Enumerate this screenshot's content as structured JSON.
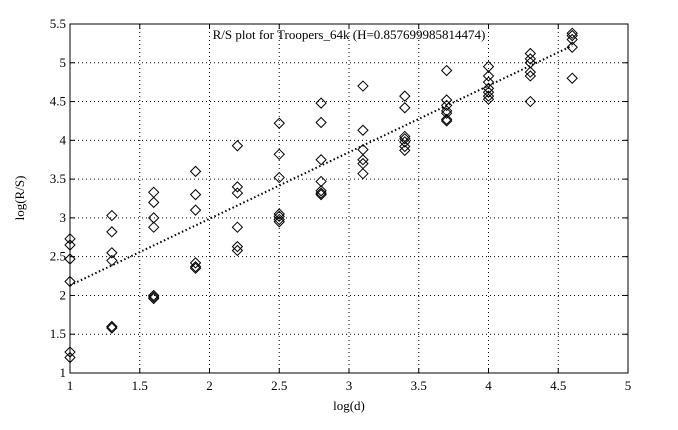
{
  "chart_data": {
    "type": "scatter",
    "title": "R/S plot for Troopers_64k (H=0.857699985814474)",
    "xlabel": "log(d)",
    "ylabel": "log(R/S)",
    "xlim": [
      1,
      5
    ],
    "ylim": [
      1,
      5.5
    ],
    "xticks": [
      "1",
      "1.5",
      "2",
      "2.5",
      "3",
      "3.5",
      "4",
      "4.5",
      "5"
    ],
    "yticks": [
      "1",
      "1.5",
      "2",
      "2.5",
      "3",
      "3.5",
      "4",
      "4.5",
      "5",
      "5.5"
    ],
    "grid": true,
    "marker": "diamond",
    "series": [
      {
        "x": [
          1,
          1,
          1,
          1,
          1,
          1,
          1.3,
          1.3,
          1.3,
          1.3,
          1.3,
          1.3,
          1.6,
          1.6,
          1.6,
          1.6,
          1.6,
          1.6,
          1.6,
          1.9,
          1.9,
          1.9,
          1.9,
          1.9,
          1.9,
          2.2,
          2.2,
          2.2,
          2.2,
          2.2,
          2.2,
          2.5,
          2.5,
          2.5,
          2.5,
          2.5,
          2.5,
          2.5,
          2.8,
          2.8,
          2.8,
          2.8,
          2.8,
          2.8,
          2.8,
          3.1,
          3.1,
          3.1,
          3.1,
          3.1,
          3.1,
          3.4,
          3.4,
          3.4,
          3.4,
          3.4,
          3.4,
          3.4,
          3.7,
          3.7,
          3.7,
          3.7,
          3.7,
          3.7,
          3.7,
          4.0,
          4.0,
          4.0,
          4.0,
          4.0,
          4.0,
          4.0,
          4.3,
          4.3,
          4.3,
          4.3,
          4.3,
          4.3,
          4.6,
          4.6,
          4.6,
          4.6,
          4.6
        ],
        "y": [
          2.73,
          2.65,
          2.47,
          2.18,
          1.27,
          1.2,
          3.03,
          2.82,
          2.55,
          2.45,
          1.6,
          1.58,
          3.33,
          3.2,
          3.0,
          2.88,
          2.0,
          1.98,
          1.96,
          3.6,
          3.3,
          3.1,
          2.42,
          2.37,
          2.35,
          3.93,
          3.4,
          3.32,
          2.88,
          2.63,
          2.58,
          4.22,
          3.82,
          3.52,
          3.05,
          3.02,
          2.98,
          2.95,
          4.48,
          4.23,
          3.75,
          3.47,
          3.35,
          3.32,
          3.3,
          4.7,
          4.13,
          3.88,
          3.75,
          3.7,
          3.57,
          4.57,
          4.42,
          4.05,
          4.02,
          3.98,
          3.92,
          3.87,
          4.9,
          4.52,
          4.45,
          4.38,
          4.35,
          4.27,
          4.25,
          4.95,
          4.83,
          4.75,
          4.67,
          4.62,
          4.57,
          4.53,
          5.12,
          5.05,
          5.0,
          4.88,
          4.83,
          4.5,
          5.38,
          5.35,
          5.3,
          5.2,
          4.8
        ]
      }
    ],
    "fit_line": {
      "style": "dotted",
      "x": [
        1,
        4.6
      ],
      "y": [
        2.13,
        5.22
      ]
    }
  }
}
